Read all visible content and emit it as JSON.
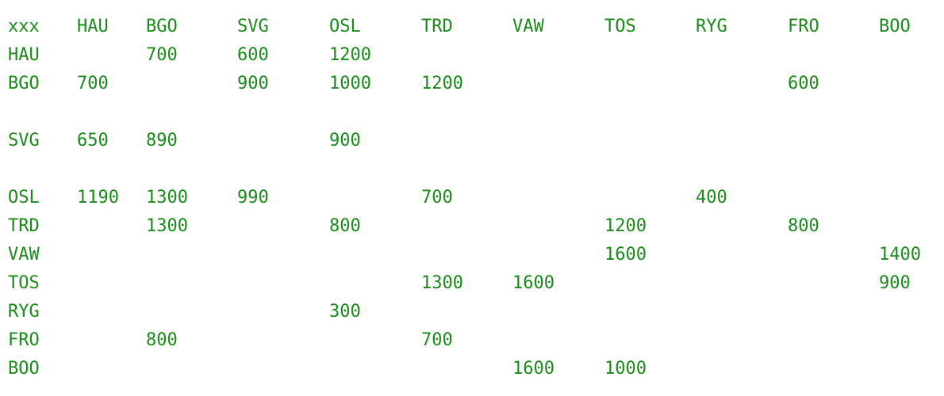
{
  "matrix": {
    "header": [
      "xxx",
      "HAU",
      "BGO",
      "SVG",
      "OSL",
      "TRD",
      "VAW",
      "TOS",
      "RYG",
      "FRO",
      "BOO"
    ],
    "rows": [
      [
        "HAU",
        "",
        "700",
        "600",
        "1200",
        "",
        "",
        "",
        "",
        "",
        ""
      ],
      [
        "BGO",
        "700",
        "",
        "900",
        "1000",
        "1200",
        "",
        "",
        "",
        "600",
        ""
      ],
      [],
      [
        "SVG",
        "650",
        "890",
        "",
        "900",
        "",
        "",
        "",
        "",
        "",
        ""
      ],
      [],
      [
        "OSL",
        "1190",
        "1300",
        "990",
        "",
        "700",
        "",
        "",
        "400",
        "",
        ""
      ],
      [
        "TRD",
        "",
        "1300",
        "",
        "800",
        "",
        "",
        "1200",
        "",
        "800",
        ""
      ],
      [
        "VAW",
        "",
        "",
        "",
        "",
        "",
        "",
        "1600",
        "",
        "",
        "1400"
      ],
      [
        "TOS",
        "",
        "",
        "",
        "",
        "1300",
        "1600",
        "",
        "",
        "",
        "900"
      ],
      [
        "RYG",
        "",
        "",
        "",
        "300",
        "",
        "",
        "",
        "",
        "",
        ""
      ],
      [
        "FRO",
        "",
        "800",
        "",
        "",
        "700",
        "",
        "",
        "",
        "",
        ""
      ],
      [
        "BOO",
        "",
        "",
        "",
        "",
        "",
        "1600",
        "1000",
        "",
        "",
        ""
      ]
    ]
  },
  "colors": {
    "text": "#1a8a1a",
    "background": "#ffffff"
  }
}
